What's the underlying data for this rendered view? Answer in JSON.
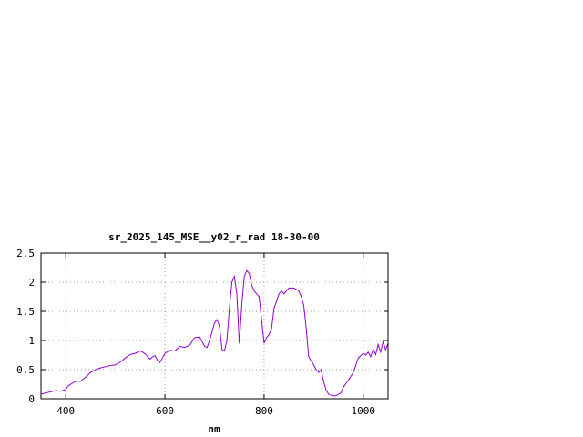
{
  "chart_data": {
    "type": "line",
    "title": "sr_2025_145_MSE__y02_r_rad 18-30-00",
    "xlabel": "nm",
    "ylabel": "",
    "xlim": [
      350,
      1050
    ],
    "ylim": [
      0,
      2.5
    ],
    "grid": true,
    "line_color": "#9400d3",
    "x_ticks": [
      400,
      600,
      800,
      1000
    ],
    "y_ticks": [
      0,
      0.5,
      1,
      1.5,
      2,
      2.5
    ],
    "x_tick_labels": [
      "400",
      "600",
      "800",
      "1000"
    ],
    "y_tick_labels": [
      "0",
      "0.5",
      "1",
      "1.5",
      "2",
      "2.5"
    ],
    "series": [
      {
        "x": [
          350,
          360,
          370,
          380,
          390,
          400,
          405,
          410,
          420,
          430,
          440,
          450,
          460,
          470,
          480,
          490,
          500,
          510,
          520,
          530,
          540,
          550,
          555,
          560,
          570,
          575,
          580,
          585,
          590,
          600,
          610,
          620,
          630,
          640,
          650,
          660,
          670,
          680,
          685,
          690,
          700,
          705,
          710,
          715,
          720,
          725,
          730,
          735,
          740,
          745,
          750,
          755,
          760,
          765,
          770,
          775,
          780,
          785,
          790,
          800,
          805,
          810,
          815,
          820,
          830,
          835,
          840,
          850,
          860,
          870,
          875,
          880,
          885,
          890,
          900,
          905,
          910,
          915,
          920,
          925,
          930,
          935,
          940,
          945,
          950,
          955,
          960,
          970,
          980,
          990,
          1000,
          1005,
          1010,
          1015,
          1020,
          1025,
          1030,
          1035,
          1040,
          1045,
          1050
        ],
        "y": [
          0.08,
          0.1,
          0.12,
          0.14,
          0.13,
          0.16,
          0.22,
          0.25,
          0.3,
          0.3,
          0.37,
          0.45,
          0.5,
          0.53,
          0.55,
          0.57,
          0.58,
          0.63,
          0.7,
          0.76,
          0.78,
          0.82,
          0.8,
          0.77,
          0.68,
          0.72,
          0.74,
          0.66,
          0.62,
          0.78,
          0.83,
          0.82,
          0.9,
          0.88,
          0.92,
          1.05,
          1.06,
          0.9,
          0.88,
          1.0,
          1.3,
          1.36,
          1.25,
          0.85,
          0.82,
          1.0,
          1.55,
          2.0,
          2.1,
          1.8,
          0.95,
          1.6,
          2.1,
          2.2,
          2.15,
          1.95,
          1.85,
          1.8,
          1.75,
          0.95,
          1.05,
          1.1,
          1.2,
          1.55,
          1.8,
          1.85,
          1.8,
          1.9,
          1.9,
          1.85,
          1.75,
          1.6,
          1.2,
          0.72,
          0.58,
          0.5,
          0.45,
          0.5,
          0.3,
          0.15,
          0.08,
          0.06,
          0.05,
          0.05,
          0.08,
          0.1,
          0.2,
          0.32,
          0.45,
          0.7,
          0.78,
          0.75,
          0.8,
          0.72,
          0.85,
          0.76,
          0.93,
          0.8,
          0.98,
          0.84,
          0.95
        ]
      }
    ]
  }
}
